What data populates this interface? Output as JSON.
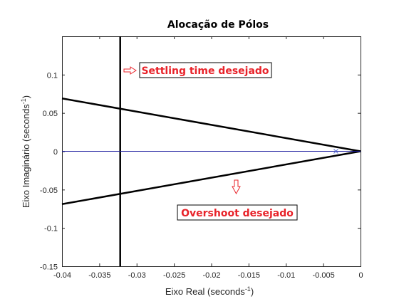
{
  "chart_data": {
    "type": "line",
    "title": "Alocação de Pólos",
    "xlabel": "Eixo Real (seconds",
    "xlabel_sup": "-1",
    "xlabel_end": ")",
    "ylabel": "Eixo Imaginário (seconds",
    "ylabel_sup": "-1",
    "ylabel_end": ")",
    "xlim": [
      -0.04,
      0
    ],
    "ylim": [
      -0.15,
      0.15
    ],
    "x_ticks": [
      -0.04,
      -0.035,
      -0.03,
      -0.025,
      -0.02,
      -0.015,
      -0.01,
      -0.005,
      0
    ],
    "x_tick_labels": [
      "-0.04",
      "-0.035",
      "-0.03",
      "-0.025",
      "-0.02",
      "-0.015",
      "-0.01",
      "-0.005",
      "0"
    ],
    "y_ticks": [
      -0.15,
      -0.1,
      -0.05,
      0,
      0.05,
      0.1
    ],
    "y_tick_labels": [
      "-0.15",
      "-0.1",
      "-0.05",
      "0",
      "0.05",
      "0.1"
    ],
    "grid": false,
    "series": [
      {
        "values": [
          [
            -0.04,
            0.069
          ],
          [
            0,
            0
          ]
        ],
        "color": "#000000",
        "width": 2.5
      },
      {
        "values": [
          [
            -0.04,
            -0.069
          ],
          [
            0,
            0
          ]
        ],
        "color": "#000000",
        "width": 2.5
      },
      {
        "values": [
          [
            -0.0322,
            -0.15
          ],
          [
            -0.0322,
            0.15
          ]
        ],
        "color": "#000000",
        "width": 2.5
      },
      {
        "values": [
          [
            -0.04,
            0
          ],
          [
            0,
            0
          ]
        ],
        "color": "#1f1fa0",
        "width": 1
      }
    ],
    "pole_markers": [
      [
        -0.0033,
        0
      ]
    ],
    "pole_marker_color": "#5a6fd6",
    "annotations": [
      {
        "text": "Settling time desejado",
        "color": "#e8232a",
        "arrow": "right",
        "x": -0.0298,
        "y": 0.105
      },
      {
        "text": "Overshoot desejado",
        "color": "#e8232a",
        "arrow": "down",
        "x": -0.0163,
        "y": -0.08
      }
    ]
  }
}
